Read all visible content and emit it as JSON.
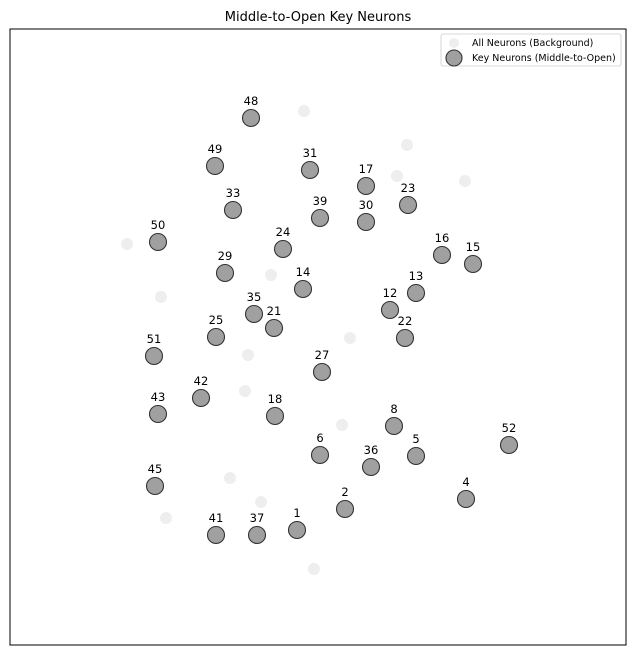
{
  "chart_data": {
    "type": "scatter",
    "title": "Middle-to-Open Key Neurons",
    "xlabel": "",
    "ylabel": "",
    "xlim": [
      0,
      616
    ],
    "ylim": [
      0,
      616
    ],
    "axis_ticks": false,
    "grid": false,
    "legend_position": "top-right",
    "colors": {
      "background_point": "#eeeeee",
      "key_point_fill": "#a0a0a0",
      "key_point_edge": "#333333",
      "frame": "#000000"
    },
    "series": [
      {
        "name": "All Neurons (Background)",
        "points": [
          {
            "x": 294,
            "y": 534
          },
          {
            "x": 397,
            "y": 500
          },
          {
            "x": 387,
            "y": 469
          },
          {
            "x": 455,
            "y": 464
          },
          {
            "x": 117,
            "y": 401
          },
          {
            "x": 261,
            "y": 370
          },
          {
            "x": 151,
            "y": 348
          },
          {
            "x": 340,
            "y": 307
          },
          {
            "x": 238,
            "y": 290
          },
          {
            "x": 235,
            "y": 254
          },
          {
            "x": 332,
            "y": 220
          },
          {
            "x": 220,
            "y": 167
          },
          {
            "x": 251,
            "y": 143
          },
          {
            "x": 156,
            "y": 127
          },
          {
            "x": 304,
            "y": 76
          }
        ]
      },
      {
        "name": "Key Neurons (Middle-to-Open)",
        "points": [
          {
            "id": "48",
            "x": 241,
            "y": 527
          },
          {
            "id": "49",
            "x": 205,
            "y": 479
          },
          {
            "id": "31",
            "x": 300,
            "y": 475
          },
          {
            "id": "17",
            "x": 356,
            "y": 459
          },
          {
            "id": "23",
            "x": 398,
            "y": 440
          },
          {
            "id": "33",
            "x": 223,
            "y": 435
          },
          {
            "id": "39",
            "x": 310,
            "y": 427
          },
          {
            "id": "30",
            "x": 356,
            "y": 423
          },
          {
            "id": "50",
            "x": 148,
            "y": 403
          },
          {
            "id": "24",
            "x": 273,
            "y": 396
          },
          {
            "id": "16",
            "x": 432,
            "y": 390
          },
          {
            "id": "15",
            "x": 463,
            "y": 381
          },
          {
            "id": "29",
            "x": 215,
            "y": 372
          },
          {
            "id": "14",
            "x": 293,
            "y": 356
          },
          {
            "id": "13",
            "x": 406,
            "y": 352
          },
          {
            "id": "12",
            "x": 380,
            "y": 335
          },
          {
            "id": "35",
            "x": 244,
            "y": 331
          },
          {
            "id": "21",
            "x": 264,
            "y": 317
          },
          {
            "id": "22",
            "x": 395,
            "y": 307
          },
          {
            "id": "25",
            "x": 206,
            "y": 308
          },
          {
            "id": "51",
            "x": 144,
            "y": 289
          },
          {
            "id": "27",
            "x": 312,
            "y": 273
          },
          {
            "id": "42",
            "x": 191,
            "y": 247
          },
          {
            "id": "43",
            "x": 148,
            "y": 231
          },
          {
            "id": "18",
            "x": 265,
            "y": 229
          },
          {
            "id": "8",
            "x": 384,
            "y": 219
          },
          {
            "id": "52",
            "x": 499,
            "y": 200
          },
          {
            "id": "6",
            "x": 310,
            "y": 190
          },
          {
            "id": "5",
            "x": 406,
            "y": 189
          },
          {
            "id": "36",
            "x": 361,
            "y": 178
          },
          {
            "id": "45",
            "x": 145,
            "y": 159
          },
          {
            "id": "4",
            "x": 456,
            "y": 146
          },
          {
            "id": "2",
            "x": 335,
            "y": 136
          },
          {
            "id": "1",
            "x": 287,
            "y": 115
          },
          {
            "id": "41",
            "x": 206,
            "y": 110
          },
          {
            "id": "37",
            "x": 247,
            "y": 110
          }
        ]
      }
    ]
  }
}
